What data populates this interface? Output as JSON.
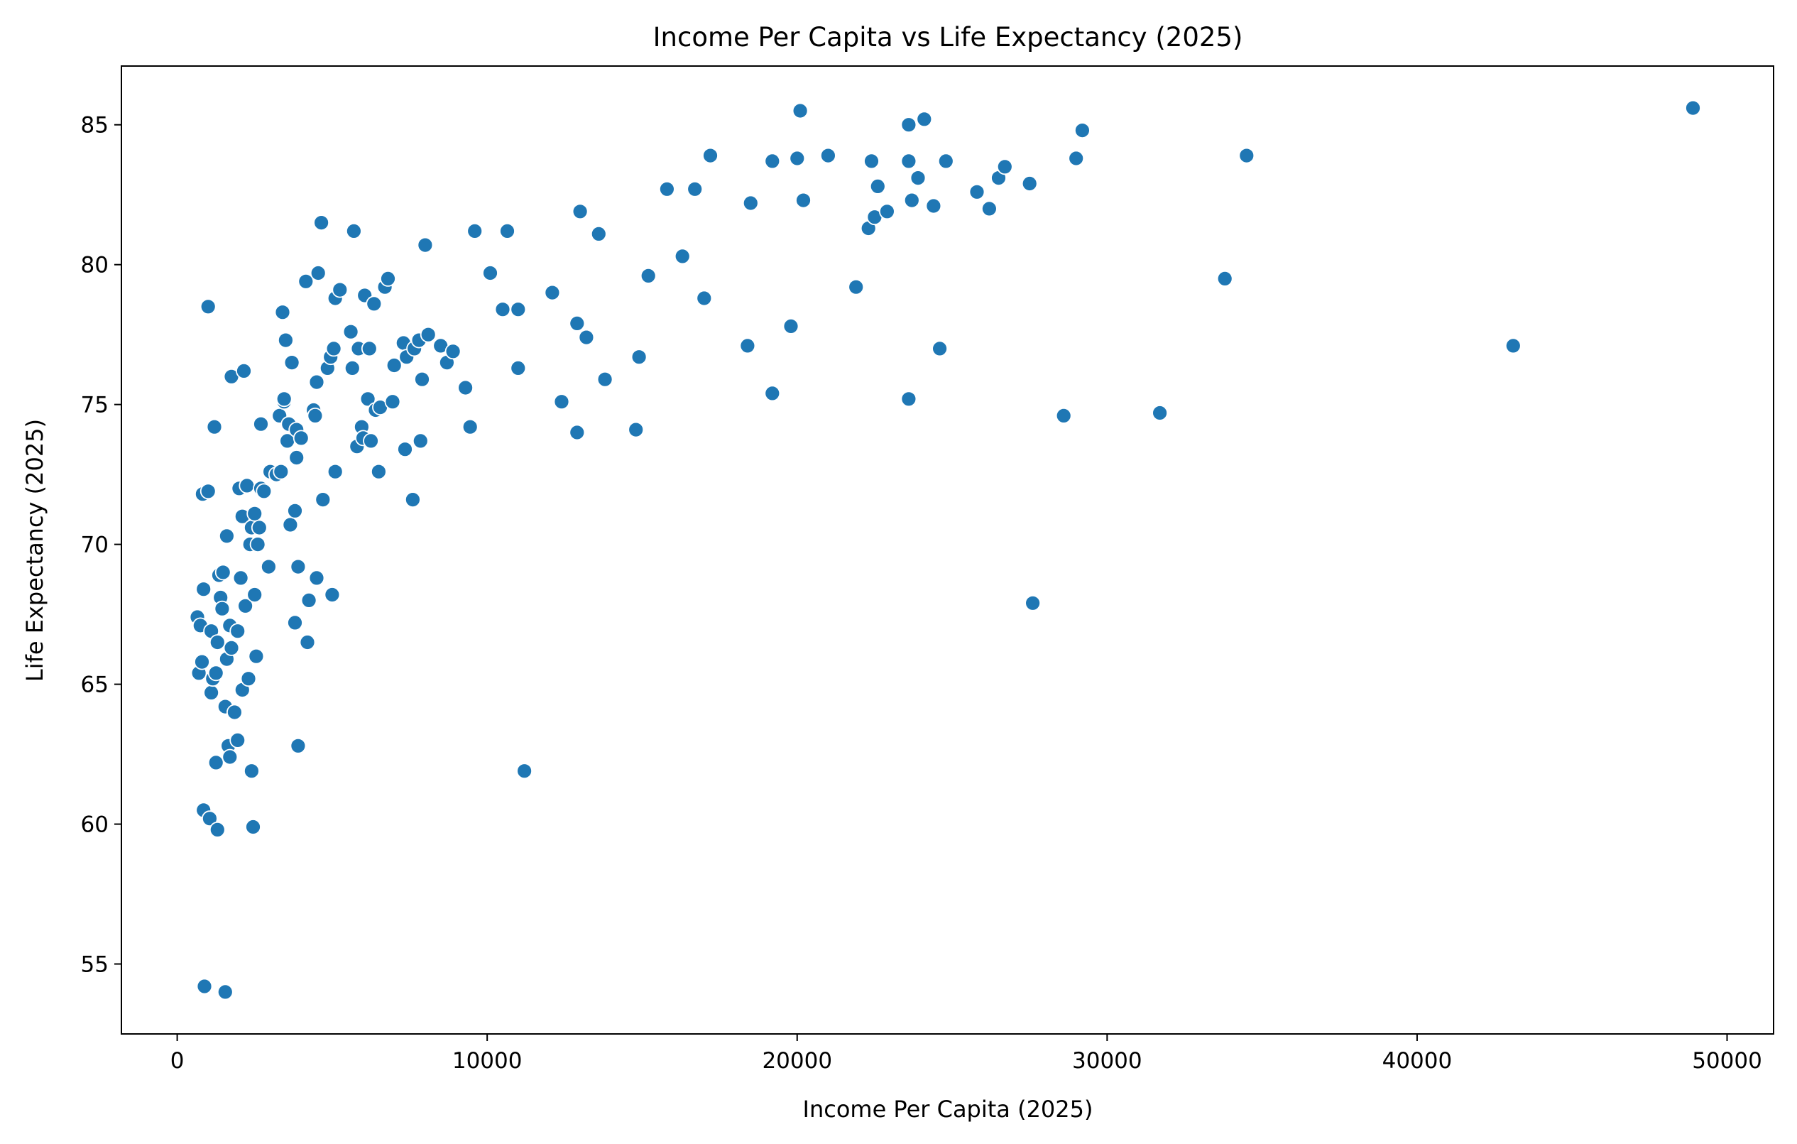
{
  "chart_data": {
    "type": "scatter",
    "title": "Income Per Capita vs Life Expectancy (2025)",
    "xlabel": "Income Per Capita (2025)",
    "ylabel": "Life Expectancy (2025)",
    "xlim": [
      -1800,
      51500
    ],
    "ylim": [
      52.5,
      87.1
    ],
    "xticks": [
      0,
      10000,
      20000,
      30000,
      40000,
      50000
    ],
    "yticks": [
      55,
      60,
      65,
      70,
      75,
      80,
      85
    ],
    "grid": false,
    "marker_color": "#1f77b4",
    "points": [
      [
        650,
        67.4
      ],
      [
        700,
        65.4
      ],
      [
        750,
        67.1
      ],
      [
        800,
        65.8
      ],
      [
        820,
        71.8
      ],
      [
        850,
        68.4
      ],
      [
        850,
        60.5
      ],
      [
        880,
        54.2
      ],
      [
        1000,
        71.9
      ],
      [
        1000,
        78.5
      ],
      [
        1050,
        60.2
      ],
      [
        1100,
        66.9
      ],
      [
        1100,
        64.7
      ],
      [
        1150,
        65.2
      ],
      [
        1200,
        74.2
      ],
      [
        1250,
        65.4
      ],
      [
        1250,
        62.2
      ],
      [
        1300,
        59.8
      ],
      [
        1300,
        66.5
      ],
      [
        1350,
        68.9
      ],
      [
        1400,
        68.1
      ],
      [
        1450,
        67.7
      ],
      [
        1480,
        69.0
      ],
      [
        1550,
        64.2
      ],
      [
        1550,
        54.0
      ],
      [
        1600,
        70.3
      ],
      [
        1600,
        65.9
      ],
      [
        1650,
        62.8
      ],
      [
        1700,
        62.4
      ],
      [
        1700,
        67.1
      ],
      [
        1750,
        66.3
      ],
      [
        1750,
        76.0
      ],
      [
        1850,
        64.0
      ],
      [
        1950,
        63.0
      ],
      [
        1950,
        66.9
      ],
      [
        2000,
        72.0
      ],
      [
        2050,
        68.8
      ],
      [
        2100,
        64.8
      ],
      [
        2100,
        71.0
      ],
      [
        2150,
        76.2
      ],
      [
        2200,
        67.8
      ],
      [
        2250,
        72.1
      ],
      [
        2300,
        65.2
      ],
      [
        2350,
        70.0
      ],
      [
        2400,
        70.6
      ],
      [
        2400,
        61.9
      ],
      [
        2450,
        59.9
      ],
      [
        2500,
        71.1
      ],
      [
        2500,
        68.2
      ],
      [
        2550,
        66.0
      ],
      [
        2600,
        70.0
      ],
      [
        2650,
        70.6
      ],
      [
        2700,
        74.3
      ],
      [
        2700,
        72.0
      ],
      [
        2800,
        71.9
      ],
      [
        2950,
        69.2
      ],
      [
        3000,
        72.6
      ],
      [
        3200,
        72.5
      ],
      [
        3300,
        74.6
      ],
      [
        3350,
        72.6
      ],
      [
        3400,
        78.3
      ],
      [
        3450,
        75.1
      ],
      [
        3450,
        75.2
      ],
      [
        3500,
        77.3
      ],
      [
        3550,
        73.7
      ],
      [
        3600,
        74.3
      ],
      [
        3650,
        70.7
      ],
      [
        3700,
        76.5
      ],
      [
        3800,
        71.2
      ],
      [
        3800,
        67.2
      ],
      [
        3850,
        73.1
      ],
      [
        3850,
        74.1
      ],
      [
        3900,
        62.8
      ],
      [
        3900,
        69.2
      ],
      [
        4000,
        73.8
      ],
      [
        4150,
        79.4
      ],
      [
        4200,
        66.5
      ],
      [
        4250,
        68.0
      ],
      [
        4400,
        74.8
      ],
      [
        4450,
        74.6
      ],
      [
        4500,
        75.8
      ],
      [
        4500,
        68.8
      ],
      [
        4550,
        79.7
      ],
      [
        4650,
        81.5
      ],
      [
        4700,
        71.6
      ],
      [
        4850,
        76.3
      ],
      [
        4950,
        76.7
      ],
      [
        5000,
        68.2
      ],
      [
        5050,
        77.0
      ],
      [
        5100,
        72.6
      ],
      [
        5100,
        78.8
      ],
      [
        5250,
        79.1
      ],
      [
        5600,
        77.6
      ],
      [
        5650,
        76.3
      ],
      [
        5700,
        81.2
      ],
      [
        5800,
        73.5
      ],
      [
        5850,
        77.0
      ],
      [
        5950,
        74.2
      ],
      [
        6000,
        73.8
      ],
      [
        6050,
        78.9
      ],
      [
        6150,
        75.2
      ],
      [
        6200,
        77.0
      ],
      [
        6250,
        73.7
      ],
      [
        6350,
        78.6
      ],
      [
        6400,
        74.8
      ],
      [
        6500,
        72.6
      ],
      [
        6550,
        74.9
      ],
      [
        6700,
        79.2
      ],
      [
        6800,
        79.5
      ],
      [
        6950,
        75.1
      ],
      [
        7000,
        76.4
      ],
      [
        7300,
        77.2
      ],
      [
        7350,
        73.4
      ],
      [
        7400,
        76.7
      ],
      [
        7600,
        71.6
      ],
      [
        7650,
        77.0
      ],
      [
        7800,
        77.3
      ],
      [
        7850,
        73.7
      ],
      [
        7900,
        75.9
      ],
      [
        8000,
        80.7
      ],
      [
        8100,
        77.5
      ],
      [
        8500,
        77.1
      ],
      [
        8700,
        76.5
      ],
      [
        8900,
        76.9
      ],
      [
        9300,
        75.6
      ],
      [
        9450,
        74.2
      ],
      [
        9600,
        81.2
      ],
      [
        10100,
        79.7
      ],
      [
        10500,
        78.4
      ],
      [
        10650,
        81.2
      ],
      [
        11000,
        78.4
      ],
      [
        11000,
        76.3
      ],
      [
        11200,
        61.9
      ],
      [
        12100,
        79.0
      ],
      [
        12400,
        75.1
      ],
      [
        12900,
        77.9
      ],
      [
        12900,
        74.0
      ],
      [
        13000,
        81.9
      ],
      [
        13200,
        77.4
      ],
      [
        13600,
        81.1
      ],
      [
        13800,
        75.9
      ],
      [
        14800,
        74.1
      ],
      [
        14900,
        76.7
      ],
      [
        15200,
        79.6
      ],
      [
        15800,
        82.7
      ],
      [
        16300,
        80.3
      ],
      [
        16700,
        82.7
      ],
      [
        17000,
        78.8
      ],
      [
        17200,
        83.9
      ],
      [
        18400,
        77.1
      ],
      [
        18500,
        82.2
      ],
      [
        19200,
        75.4
      ],
      [
        19200,
        83.7
      ],
      [
        19800,
        77.8
      ],
      [
        20000,
        83.8
      ],
      [
        20100,
        85.5
      ],
      [
        20200,
        82.3
      ],
      [
        21000,
        83.9
      ],
      [
        21900,
        79.2
      ],
      [
        22300,
        81.3
      ],
      [
        22400,
        83.7
      ],
      [
        22500,
        81.7
      ],
      [
        22600,
        82.8
      ],
      [
        22900,
        81.9
      ],
      [
        23600,
        85.0
      ],
      [
        23600,
        75.2
      ],
      [
        23600,
        83.7
      ],
      [
        23700,
        82.3
      ],
      [
        23900,
        83.1
      ],
      [
        24100,
        85.2
      ],
      [
        24400,
        82.1
      ],
      [
        24600,
        77.0
      ],
      [
        24800,
        83.7
      ],
      [
        25800,
        82.6
      ],
      [
        26200,
        82.0
      ],
      [
        26500,
        83.1
      ],
      [
        26700,
        83.5
      ],
      [
        27500,
        82.9
      ],
      [
        27600,
        67.9
      ],
      [
        28600,
        74.6
      ],
      [
        29000,
        83.8
      ],
      [
        29200,
        84.8
      ],
      [
        31700,
        74.7
      ],
      [
        33800,
        79.5
      ],
      [
        34500,
        83.9
      ],
      [
        43100,
        77.1
      ],
      [
        48900,
        85.6
      ]
    ]
  }
}
